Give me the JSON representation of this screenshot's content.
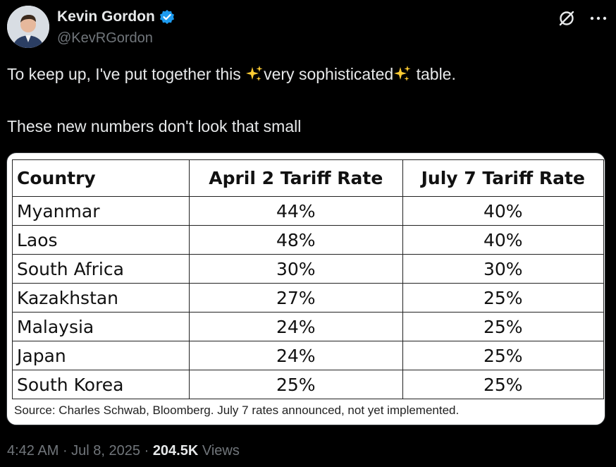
{
  "tweet": {
    "author_name": "Kevin Gordon",
    "handle": "@KevRGordon",
    "line1_part1": "To keep up, I've put together this ",
    "line1_part2": "very sophisticated",
    "line1_part3": " table.",
    "line2": "These new numbers don't look that small"
  },
  "table": {
    "headers": [
      "Country",
      "April 2 Tariff Rate",
      "July 7 Tariff Rate"
    ],
    "rows": [
      [
        "Myanmar",
        "44%",
        "40%"
      ],
      [
        "Laos",
        "48%",
        "40%"
      ],
      [
        "South Africa",
        "30%",
        "30%"
      ],
      [
        "Kazakhstan",
        "27%",
        "25%"
      ],
      [
        "Malaysia",
        "24%",
        "25%"
      ],
      [
        "Japan",
        "24%",
        "25%"
      ],
      [
        "South Korea",
        "25%",
        "25%"
      ]
    ],
    "source": "Source: Charles Schwab, Bloomberg. July 7 rates announced, not yet implemented."
  },
  "meta": {
    "time": "4:42 AM",
    "sep1": " · ",
    "date": "Jul 8, 2025",
    "sep2": " · ",
    "views_count": "204.5K",
    "views_label": " Views"
  },
  "colors": {
    "background": "#000000",
    "primary_text": "#e7e9ea",
    "secondary_text": "#71767b",
    "verified_badge": "#1d9bf0",
    "sparkle": "#ffcc33"
  },
  "icons": [
    "verified-badge-icon",
    "grok-icon",
    "more-icon",
    "sparkles-icon"
  ]
}
